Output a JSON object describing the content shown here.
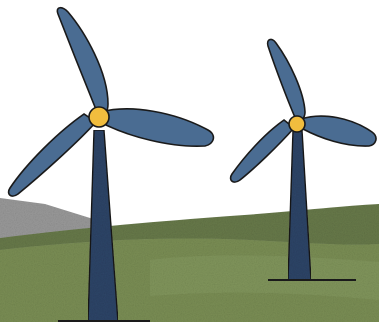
{
  "scene": {
    "subject": "wind-turbines-illustration",
    "turbine_count": 2,
    "colors": {
      "sky": "#ffffff",
      "blade_fill": "#4a6c92",
      "tower_fill": "#2e4568",
      "tower_texture": "#3c5983",
      "hub_fill": "#f1bd3e",
      "hub_stroke": "#1a1a1a",
      "outline": "#1a1a1a",
      "hill_front": "#7b8f55",
      "hill_back": "#687a4a",
      "grass_light": "#8fa56a",
      "rock_gray": "#9a9a9a",
      "rock_dark": "#7d7d7d"
    }
  }
}
